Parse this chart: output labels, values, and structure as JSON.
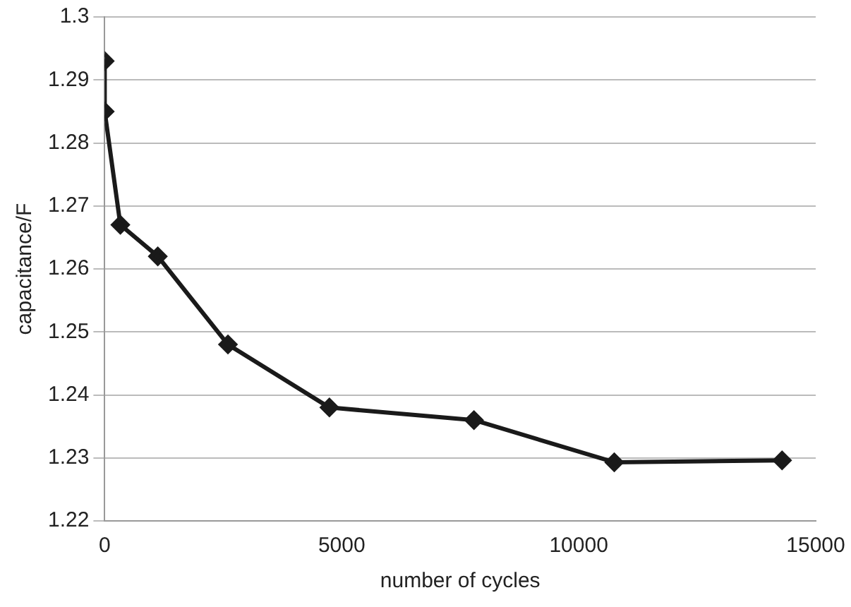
{
  "chart_data": {
    "type": "line",
    "xlabel": "number of cycles",
    "ylabel": "capacitance/F",
    "x": [
      0,
      0,
      330,
      1120,
      2600,
      4740,
      7790,
      10750,
      14290
    ],
    "series": [
      {
        "color": "#1a1a1a",
        "values": [
          1.293,
          1.285,
          1.267,
          1.262,
          1.248,
          1.238,
          1.236,
          1.2293,
          1.2296
        ]
      }
    ],
    "xlim": [
      0,
      15000
    ],
    "xticks": [
      0,
      5000,
      10000,
      15000
    ],
    "ylim": [
      1.22,
      1.3
    ],
    "yticks": [
      1.22,
      1.23,
      1.24,
      1.25,
      1.26,
      1.27,
      1.28,
      1.29,
      1.3
    ],
    "grid": "y",
    "legend": false,
    "marker": "diamond",
    "line_style": "solid"
  }
}
